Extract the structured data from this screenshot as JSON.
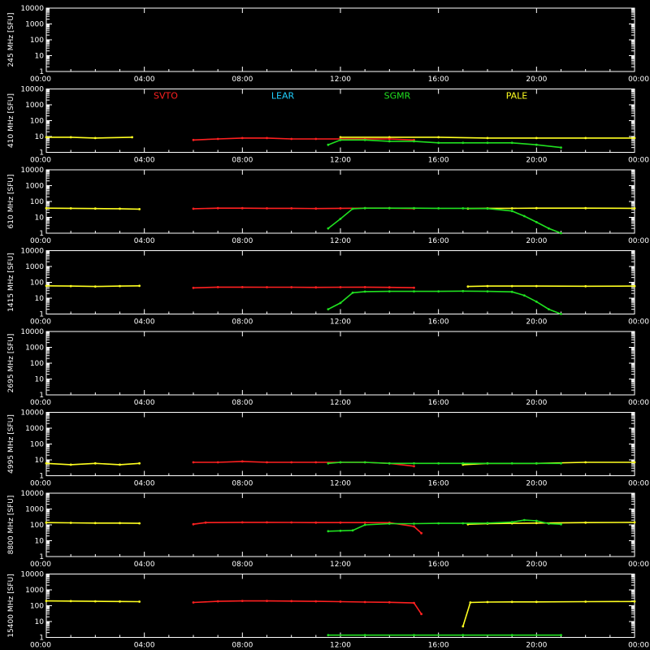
{
  "chart_data": {
    "type": "scatter",
    "x_ticks": [
      "00:00",
      "04:00",
      "08:00",
      "12:00",
      "16:00",
      "20:00",
      "00:00"
    ],
    "y_ticks": [
      "1",
      "10",
      "100",
      "1000",
      "10000"
    ],
    "y_unit": "[SFU]",
    "y_scale": "log",
    "ylim": [
      1,
      10000
    ],
    "xlim_hours": [
      0,
      24
    ],
    "grid": false,
    "legend_placement": "top of 2nd panel",
    "stations": [
      {
        "name": "SVTO",
        "color": "#ff2020"
      },
      {
        "name": "LEAR",
        "color": "#20d0ff"
      },
      {
        "name": "SGMR",
        "color": "#20e020"
      },
      {
        "name": "PALE",
        "color": "#ffff20"
      }
    ],
    "panels": [
      {
        "freq": "245",
        "unit": "MHz",
        "series": []
      },
      {
        "freq": "410",
        "unit": "MHz",
        "series": [
          {
            "station": "PALE",
            "points": [
              [
                0.0,
                9
              ],
              [
                1.0,
                9
              ],
              [
                2.0,
                8
              ],
              [
                3.5,
                9
              ],
              [
                12.0,
                9
              ],
              [
                14.0,
                9
              ],
              [
                16.0,
                9
              ],
              [
                18.0,
                8
              ],
              [
                20.0,
                8
              ],
              [
                22.0,
                8
              ],
              [
                24.0,
                8
              ]
            ]
          },
          {
            "station": "SVTO",
            "points": [
              [
                6.0,
                6
              ],
              [
                7.0,
                7
              ],
              [
                8.0,
                8
              ],
              [
                9.0,
                8
              ],
              [
                10.0,
                7
              ],
              [
                11.0,
                7
              ],
              [
                12.0,
                7
              ],
              [
                13.0,
                7
              ],
              [
                14.0,
                7
              ],
              [
                15.0,
                6
              ]
            ]
          },
          {
            "station": "SGMR",
            "points": [
              [
                11.5,
                3
              ],
              [
                12.0,
                6
              ],
              [
                13.0,
                6
              ],
              [
                14.0,
                5
              ],
              [
                15.0,
                5
              ],
              [
                16.0,
                4
              ],
              [
                17.0,
                4
              ],
              [
                18.0,
                4
              ],
              [
                19.0,
                4
              ],
              [
                20.0,
                3
              ],
              [
                21.0,
                2
              ]
            ]
          }
        ]
      },
      {
        "freq": "610",
        "unit": "MHz",
        "series": [
          {
            "station": "PALE",
            "points": [
              [
                0.0,
                38
              ],
              [
                1.0,
                37
              ],
              [
                2.0,
                36
              ],
              [
                3.0,
                35
              ],
              [
                3.8,
                33
              ],
              [
                17.2,
                36
              ],
              [
                18.0,
                37
              ],
              [
                19.0,
                37
              ],
              [
                20.0,
                38
              ],
              [
                22.0,
                38
              ],
              [
                24.0,
                37
              ]
            ]
          },
          {
            "station": "SVTO",
            "points": [
              [
                6.0,
                35
              ],
              [
                7.0,
                38
              ],
              [
                8.0,
                38
              ],
              [
                9.0,
                37
              ],
              [
                10.0,
                37
              ],
              [
                11.0,
                36
              ],
              [
                12.0,
                37
              ],
              [
                13.0,
                38
              ],
              [
                14.0,
                38
              ],
              [
                15.0,
                36
              ]
            ]
          },
          {
            "station": "SGMR",
            "points": [
              [
                11.5,
                2
              ],
              [
                12.0,
                8
              ],
              [
                12.5,
                35
              ],
              [
                13.0,
                38
              ],
              [
                14.0,
                38
              ],
              [
                15.0,
                38
              ],
              [
                16.0,
                37
              ],
              [
                17.0,
                37
              ],
              [
                18.0,
                36
              ],
              [
                19.0,
                25
              ],
              [
                19.5,
                12
              ],
              [
                20.0,
                5
              ],
              [
                20.5,
                2
              ],
              [
                21.0,
                1
              ]
            ]
          }
        ]
      },
      {
        "freq": "1415",
        "unit": "MHz",
        "series": [
          {
            "station": "PALE",
            "points": [
              [
                0.0,
                60
              ],
              [
                1.0,
                58
              ],
              [
                2.0,
                55
              ],
              [
                3.0,
                58
              ],
              [
                3.8,
                60
              ],
              [
                17.2,
                55
              ],
              [
                18.0,
                58
              ],
              [
                19.0,
                58
              ],
              [
                20.0,
                58
              ],
              [
                22.0,
                57
              ],
              [
                24.0,
                58
              ]
            ]
          },
          {
            "station": "SVTO",
            "points": [
              [
                6.0,
                45
              ],
              [
                7.0,
                50
              ],
              [
                8.0,
                50
              ],
              [
                9.0,
                49
              ],
              [
                10.0,
                49
              ],
              [
                11.0,
                48
              ],
              [
                12.0,
                49
              ],
              [
                13.0,
                50
              ],
              [
                14.0,
                48
              ],
              [
                15.0,
                46
              ]
            ]
          },
          {
            "station": "SGMR",
            "points": [
              [
                11.5,
                2
              ],
              [
                12.0,
                5
              ],
              [
                12.5,
                22
              ],
              [
                13.0,
                26
              ],
              [
                14.0,
                27
              ],
              [
                15.0,
                27
              ],
              [
                16.0,
                27
              ],
              [
                17.0,
                28
              ],
              [
                18.0,
                27
              ],
              [
                19.0,
                25
              ],
              [
                19.5,
                15
              ],
              [
                20.0,
                6
              ],
              [
                20.5,
                2
              ],
              [
                21.0,
                1
              ]
            ]
          }
        ]
      },
      {
        "freq": "2695",
        "unit": "MHz",
        "series": []
      },
      {
        "freq": "4995",
        "unit": "MHz",
        "series": [
          {
            "station": "PALE",
            "points": [
              [
                0.0,
                6
              ],
              [
                1.0,
                5
              ],
              [
                2.0,
                6
              ],
              [
                3.0,
                5
              ],
              [
                3.8,
                6
              ],
              [
                17.0,
                5
              ],
              [
                18.0,
                6
              ],
              [
                20.0,
                6
              ],
              [
                22.0,
                7
              ],
              [
                24.0,
                7
              ]
            ]
          },
          {
            "station": "SVTO",
            "points": [
              [
                6.0,
                7
              ],
              [
                7.0,
                7
              ],
              [
                8.0,
                8
              ],
              [
                9.0,
                7
              ],
              [
                10.0,
                7
              ],
              [
                11.0,
                7
              ],
              [
                12.0,
                7
              ],
              [
                13.0,
                7
              ],
              [
                14.0,
                6
              ],
              [
                15.0,
                4
              ]
            ]
          },
          {
            "station": "SGMR",
            "points": [
              [
                11.5,
                6
              ],
              [
                12.0,
                7
              ],
              [
                13.0,
                7
              ],
              [
                14.0,
                6
              ],
              [
                15.0,
                6
              ],
              [
                16.0,
                6
              ],
              [
                17.0,
                6
              ],
              [
                18.0,
                6
              ],
              [
                19.0,
                6
              ],
              [
                20.0,
                6
              ],
              [
                21.0,
                6
              ]
            ]
          }
        ]
      },
      {
        "freq": "8800",
        "unit": "MHz",
        "series": [
          {
            "station": "PALE",
            "points": [
              [
                0.0,
                140
              ],
              [
                1.0,
                135
              ],
              [
                2.0,
                130
              ],
              [
                3.0,
                130
              ],
              [
                3.8,
                125
              ],
              [
                17.2,
                110
              ],
              [
                18.0,
                120
              ],
              [
                19.0,
                125
              ],
              [
                20.0,
                130
              ],
              [
                22.0,
                140
              ],
              [
                24.0,
                145
              ]
            ]
          },
          {
            "station": "SVTO",
            "points": [
              [
                6.0,
                110
              ],
              [
                6.5,
                140
              ],
              [
                8.0,
                145
              ],
              [
                9.0,
                145
              ],
              [
                10.0,
                142
              ],
              [
                11.0,
                140
              ],
              [
                12.0,
                140
              ],
              [
                13.0,
                140
              ],
              [
                14.0,
                138
              ],
              [
                15.0,
                80
              ],
              [
                15.3,
                30
              ]
            ]
          },
          {
            "station": "SGMR",
            "points": [
              [
                11.5,
                40
              ],
              [
                12.0,
                42
              ],
              [
                12.5,
                45
              ],
              [
                13.0,
                100
              ],
              [
                14.0,
                120
              ],
              [
                15.0,
                120
              ],
              [
                16.0,
                125
              ],
              [
                17.0,
                125
              ],
              [
                18.0,
                130
              ],
              [
                19.0,
                150
              ],
              [
                19.5,
                200
              ],
              [
                20.0,
                180
              ],
              [
                20.5,
                120
              ],
              [
                21.0,
                110
              ]
            ]
          }
        ]
      },
      {
        "freq": "15400",
        "unit": "MHz",
        "series": [
          {
            "station": "PALE",
            "points": [
              [
                0.0,
                200
              ],
              [
                1.0,
                195
              ],
              [
                2.0,
                190
              ],
              [
                3.0,
                185
              ],
              [
                3.8,
                180
              ],
              [
                17.0,
                5
              ],
              [
                17.3,
                160
              ],
              [
                18.0,
                170
              ],
              [
                19.0,
                175
              ],
              [
                20.0,
                175
              ],
              [
                22.0,
                180
              ],
              [
                24.0,
                185
              ]
            ]
          },
          {
            "station": "SVTO",
            "points": [
              [
                6.0,
                160
              ],
              [
                7.0,
                190
              ],
              [
                8.0,
                200
              ],
              [
                9.0,
                200
              ],
              [
                10.0,
                195
              ],
              [
                11.0,
                190
              ],
              [
                12.0,
                180
              ],
              [
                13.0,
                170
              ],
              [
                14.0,
                165
              ],
              [
                15.0,
                150
              ],
              [
                15.3,
                30
              ]
            ]
          },
          {
            "station": "SGMR",
            "points": [
              [
                11.5,
                1.4
              ],
              [
                13.0,
                1.4
              ],
              [
                15.0,
                1.4
              ],
              [
                17.0,
                1.4
              ],
              [
                19.0,
                1.4
              ],
              [
                21.0,
                1.4
              ]
            ]
          }
        ]
      }
    ]
  }
}
